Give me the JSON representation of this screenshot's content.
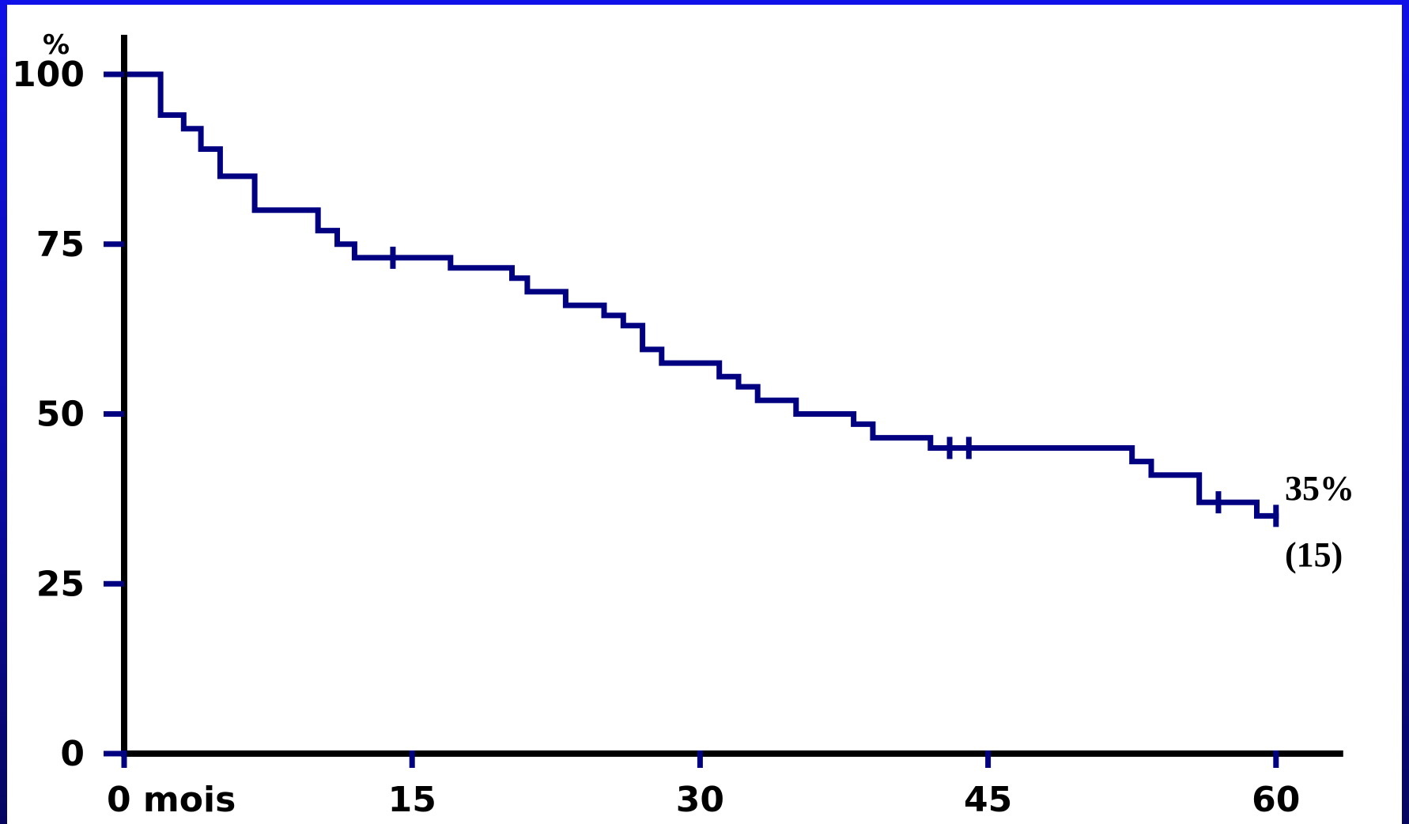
{
  "chart_data": {
    "type": "line",
    "step": true,
    "ylabel": "%",
    "x_tick_labels": [
      "0 mois",
      "15",
      "30",
      "45",
      "60"
    ],
    "x_ticks": [
      0,
      15,
      30,
      45,
      60
    ],
    "xlim": [
      0,
      63.5
    ],
    "y_tick_labels": [
      "100",
      "75",
      "50",
      "25",
      "0"
    ],
    "y_ticks": [
      100,
      75,
      50,
      25,
      0
    ],
    "ylim": [
      0,
      100
    ],
    "grid": false,
    "colors": {
      "line": "#000080",
      "axis": "#000000"
    },
    "series": [
      {
        "x": [
          0,
          1.9,
          1.9,
          3.1,
          3.1,
          4.0,
          4.0,
          5.0,
          5.0,
          6.8,
          6.8,
          10.1,
          10.1,
          11.1,
          11.1,
          12.0,
          12.0,
          17.0,
          17.0,
          20.2,
          20.2,
          21.0,
          21.0,
          23.0,
          23.0,
          25.0,
          25.0,
          26.0,
          26.0,
          27.0,
          27.0,
          28.0,
          28.0,
          31.0,
          31.0,
          32.0,
          32.0,
          33.0,
          33.0,
          35.0,
          35.0,
          38.0,
          38.0,
          39.0,
          39.0,
          42.0,
          42.0,
          52.5,
          52.5,
          53.5,
          53.5,
          56.0,
          56.0,
          59.0,
          59.0,
          60.0
        ],
        "y": [
          100,
          100,
          94,
          94,
          92,
          92,
          89,
          89,
          85,
          85,
          80,
          80,
          77,
          77,
          75,
          75,
          73,
          73,
          71.5,
          71.5,
          70,
          70,
          68,
          68,
          66,
          66,
          64.5,
          64.5,
          63,
          63,
          59.5,
          59.5,
          57.5,
          57.5,
          55.5,
          55.5,
          54,
          54,
          52,
          52,
          50,
          50,
          48.5,
          48.5,
          46.5,
          46.5,
          45,
          45,
          43,
          43,
          41,
          41,
          37,
          37,
          35,
          35
        ]
      }
    ],
    "censor_marks": [
      {
        "x": 14,
        "y": 73
      },
      {
        "x": 43,
        "y": 45
      },
      {
        "x": 44,
        "y": 45
      },
      {
        "x": 57,
        "y": 37
      },
      {
        "x": 60,
        "y": 35
      }
    ],
    "annotations": [
      "35%",
      "(15)"
    ]
  }
}
